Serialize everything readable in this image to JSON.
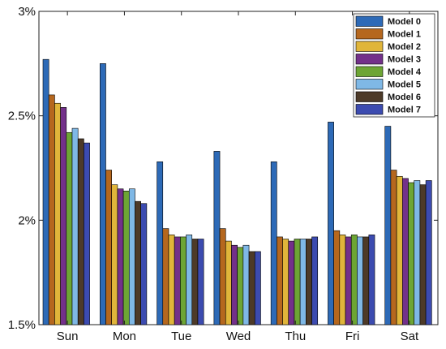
{
  "chart_data": {
    "type": "bar",
    "title": "",
    "xlabel": "",
    "ylabel": "",
    "ylim": [
      0.015,
      0.03
    ],
    "yticks": [
      0.015,
      0.02,
      0.025,
      0.03
    ],
    "ytick_labels": [
      "1.5%",
      "2%",
      "2.5%",
      "3%"
    ],
    "categories": [
      "Sun",
      "Mon",
      "Tue",
      "Wed",
      "Thu",
      "Fri",
      "Sat"
    ],
    "legend_position": "top-right",
    "grid": false,
    "series": [
      {
        "name": "Model 0",
        "color": "#2d6ab7",
        "values": [
          0.0277,
          0.0275,
          0.0228,
          0.0233,
          0.0228,
          0.0247,
          0.0245
        ]
      },
      {
        "name": "Model 1",
        "color": "#b5671e",
        "values": [
          0.026,
          0.0224,
          0.0196,
          0.0196,
          0.0192,
          0.0195,
          0.0224
        ]
      },
      {
        "name": "Model 2",
        "color": "#e0b53a",
        "values": [
          0.0256,
          0.0217,
          0.0193,
          0.019,
          0.0191,
          0.0193,
          0.0221
        ]
      },
      {
        "name": "Model 3",
        "color": "#73308a",
        "values": [
          0.0254,
          0.0215,
          0.0192,
          0.0188,
          0.019,
          0.0192,
          0.022
        ]
      },
      {
        "name": "Model 4",
        "color": "#6da534",
        "values": [
          0.0242,
          0.0214,
          0.0192,
          0.0187,
          0.0191,
          0.0193,
          0.0218
        ]
      },
      {
        "name": "Model 5",
        "color": "#7fb8e6",
        "values": [
          0.0244,
          0.0215,
          0.0193,
          0.0188,
          0.0191,
          0.0192,
          0.0219
        ]
      },
      {
        "name": "Model 6",
        "color": "#4d3a28",
        "values": [
          0.0239,
          0.0209,
          0.0191,
          0.0185,
          0.0191,
          0.0192,
          0.0217
        ]
      },
      {
        "name": "Model 7",
        "color": "#3c4bb0",
        "values": [
          0.0237,
          0.0208,
          0.0191,
          0.0185,
          0.0192,
          0.0193,
          0.0219
        ]
      }
    ]
  }
}
